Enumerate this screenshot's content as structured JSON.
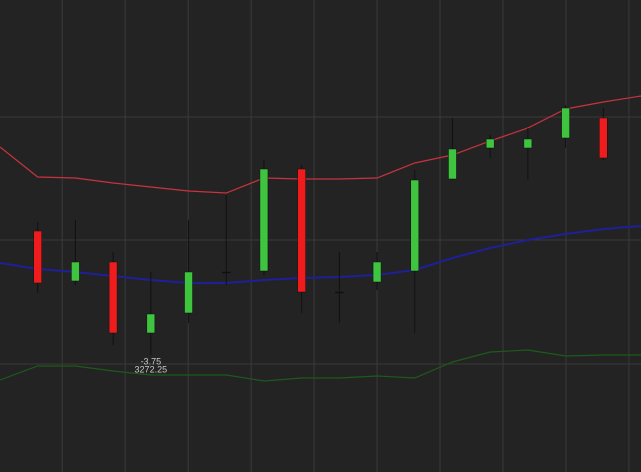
{
  "chart_data": {
    "type": "candlestick",
    "x": [
      1,
      2,
      3,
      4,
      5,
      6,
      7,
      8,
      9,
      10,
      11,
      12,
      13,
      14,
      15,
      16
    ],
    "open": [
      241,
      191,
      210,
      139,
      159,
      200,
      201,
      303,
      180,
      190,
      201,
      293,
      324,
      324,
      334,
      354
    ],
    "close": [
      189,
      210,
      139,
      158,
      200,
      200,
      303,
      180,
      180,
      210,
      292,
      323,
      333,
      333,
      364,
      314
    ],
    "high": [
      250,
      252,
      220,
      200,
      252,
      277,
      312,
      307,
      220,
      220,
      302,
      354,
      337,
      344,
      367,
      364
    ],
    "low": [
      179,
      187,
      127,
      117,
      149,
      187,
      197,
      159,
      149,
      182,
      139,
      292,
      314,
      292,
      324,
      312
    ],
    "up_color": "#3ec43e",
    "down_color": "#ee1c1c",
    "doji_color": "#111111",
    "lines": {
      "x": [
        0,
        1,
        2,
        3,
        4,
        5,
        6,
        7,
        8,
        9,
        10,
        11,
        12,
        13,
        14,
        15,
        16,
        17
      ],
      "series": [
        {
          "color": "#c8333f",
          "values": [
            325,
            295,
            294,
            289,
            285,
            281,
            279,
            294,
            293,
            293,
            294,
            309,
            317,
            331,
            344,
            363,
            370,
            376
          ]
        },
        {
          "color": "#1f1f9a",
          "values": [
            209,
            203,
            200,
            196,
            192,
            189,
            189,
            192,
            194,
            195,
            197,
            202,
            214,
            224,
            232,
            238,
            243,
            246
          ]
        },
        {
          "color": "#1d5a1d",
          "values": [
            92,
            106,
            106,
            101,
            97,
            97,
            97,
            91,
            94,
            94,
            96,
            94,
            110,
            120,
            122,
            116,
            117,
            117
          ]
        }
      ]
    },
    "xlim": [
      0,
      17
    ],
    "ylim": [
      0,
      472
    ],
    "yticks": [
      108,
      232,
      355
    ],
    "xticks": [
      1.65,
      3.32,
      4.99,
      6.66,
      8.33,
      10,
      11.67,
      13.34,
      15.01,
      16.68
    ],
    "grid": true,
    "annotations": [
      "-3.75",
      "3272.25"
    ]
  }
}
